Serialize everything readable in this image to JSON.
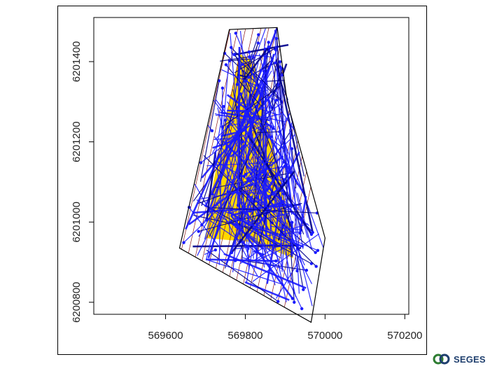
{
  "logo": {
    "text": "SEGES",
    "icon": "seges-rings-icon"
  },
  "colors": {
    "field_fill": "#ffd700",
    "field_orange": "#ff8c00",
    "tramline": "#8b1a1a",
    "track": "#1a1aff",
    "track_dark": "#00008b",
    "outline": "#000000"
  },
  "chart_data": {
    "type": "scatter",
    "title": "",
    "xlabel": "",
    "ylabel": "",
    "xlim": [
      569420,
      570210
    ],
    "ylim": [
      6200770,
      6201510
    ],
    "x_ticks": [
      569600,
      569800,
      570000,
      570200
    ],
    "x_tick_labels": [
      "569600",
      "569800",
      "570000",
      "570200"
    ],
    "y_ticks": [
      6200800,
      6201000,
      6201200,
      6201400
    ],
    "y_tick_labels": [
      "6200800",
      "6201000",
      "6201200",
      "6201400"
    ],
    "grid": false,
    "legend": "none",
    "series": [
      {
        "role": "field-boundary",
        "x": [
          569760,
          569880,
          569905,
          570000,
          569965,
          569635
        ],
        "y": [
          6201480,
          6201485,
          6201300,
          6200960,
          6200750,
          6200935
        ]
      },
      {
        "role": "crop-area",
        "x": [
          569785,
          569820,
          569880,
          569920,
          569920,
          569820,
          569700,
          569720
        ],
        "y": [
          6201420,
          6201400,
          6201150,
          6200950,
          6200910,
          6200950,
          6200960,
          6201100
        ]
      }
    ]
  }
}
